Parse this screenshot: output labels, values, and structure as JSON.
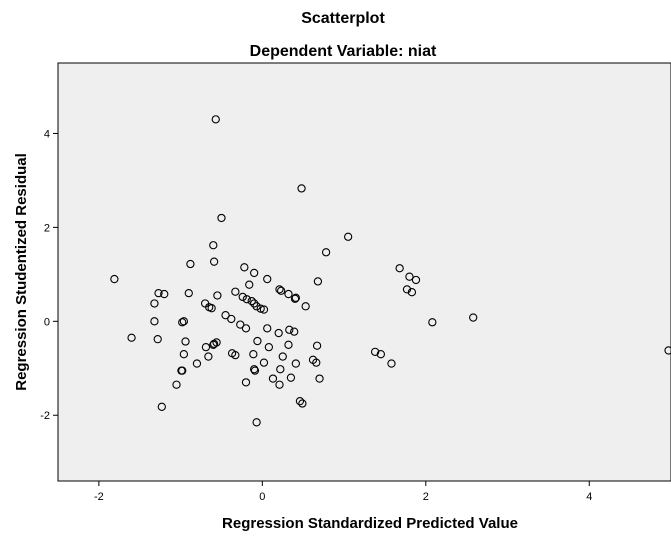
{
  "chart_data": {
    "type": "scatter",
    "title": "Scatterplot",
    "subtitle": "Dependent Variable: niat",
    "xlabel": "Regression Standardized Predicted Value",
    "ylabel": "Regression Studentized Residual",
    "xlim": [
      -2.5,
      5.0
    ],
    "ylim": [
      -3.4,
      5.5
    ],
    "xticks": [
      -2,
      0,
      2,
      4
    ],
    "yticks": [
      -2,
      0,
      2,
      4
    ],
    "xtick_labels": [
      "-2",
      "0",
      "2",
      "4"
    ],
    "ytick_labels": [
      "-2",
      "0",
      "2",
      "4"
    ],
    "grid": false,
    "legend": "none",
    "colors": {
      "plot_background": "#efefef",
      "marker_edge": "#000000"
    },
    "points": [
      [
        -0.57,
        4.3
      ],
      [
        0.48,
        2.83
      ],
      [
        -0.5,
        2.2
      ],
      [
        1.05,
        1.8
      ],
      [
        -0.6,
        1.62
      ],
      [
        0.78,
        1.47
      ],
      [
        -0.59,
        1.27
      ],
      [
        -0.88,
        1.22
      ],
      [
        -0.22,
        1.15
      ],
      [
        -0.1,
        1.03
      ],
      [
        1.68,
        1.13
      ],
      [
        1.8,
        0.95
      ],
      [
        1.88,
        0.88
      ],
      [
        0.06,
        0.9
      ],
      [
        0.68,
        0.85
      ],
      [
        -1.81,
        0.9
      ],
      [
        -0.16,
        0.78
      ],
      [
        0.21,
        0.68
      ],
      [
        0.23,
        0.65
      ],
      [
        0.32,
        0.58
      ],
      [
        0.4,
        0.48
      ],
      [
        0.41,
        0.5
      ],
      [
        1.77,
        0.68
      ],
      [
        1.83,
        0.62
      ],
      [
        -1.27,
        0.6
      ],
      [
        -1.2,
        0.58
      ],
      [
        -0.9,
        0.6
      ],
      [
        -0.55,
        0.55
      ],
      [
        -0.33,
        0.63
      ],
      [
        -0.24,
        0.52
      ],
      [
        -0.19,
        0.47
      ],
      [
        -0.13,
        0.43
      ],
      [
        -0.1,
        0.38
      ],
      [
        -0.07,
        0.32
      ],
      [
        -0.02,
        0.27
      ],
      [
        0.02,
        0.25
      ],
      [
        -0.7,
        0.38
      ],
      [
        -0.65,
        0.3
      ],
      [
        -0.62,
        0.28
      ],
      [
        0.53,
        0.32
      ],
      [
        -1.32,
        0.38
      ],
      [
        -0.45,
        0.13
      ],
      [
        -0.38,
        0.05
      ],
      [
        -0.27,
        -0.07
      ],
      [
        -0.2,
        -0.15
      ],
      [
        0.06,
        -0.15
      ],
      [
        0.33,
        -0.18
      ],
      [
        0.39,
        -0.22
      ],
      [
        0.2,
        -0.25
      ],
      [
        -1.32,
        0.0
      ],
      [
        -0.98,
        -0.02
      ],
      [
        -0.96,
        0.0
      ],
      [
        2.08,
        -0.02
      ],
      [
        2.58,
        0.08
      ],
      [
        -1.6,
        -0.35
      ],
      [
        -1.28,
        -0.38
      ],
      [
        -0.56,
        -0.45
      ],
      [
        -0.6,
        -0.5
      ],
      [
        -0.59,
        -0.48
      ],
      [
        -0.06,
        -0.42
      ],
      [
        0.08,
        -0.55
      ],
      [
        0.32,
        -0.5
      ],
      [
        0.67,
        -0.52
      ],
      [
        -0.94,
        -0.43
      ],
      [
        -0.69,
        -0.55
      ],
      [
        -0.11,
        -0.7
      ],
      [
        -0.37,
        -0.68
      ],
      [
        -0.33,
        -0.72
      ],
      [
        -0.66,
        -0.75
      ],
      [
        -0.96,
        -0.7
      ],
      [
        1.38,
        -0.65
      ],
      [
        1.45,
        -0.7
      ],
      [
        1.58,
        -0.9
      ],
      [
        0.25,
        -0.75
      ],
      [
        0.41,
        -0.9
      ],
      [
        0.62,
        -0.82
      ],
      [
        0.66,
        -0.88
      ],
      [
        -0.8,
        -0.9
      ],
      [
        0.02,
        -0.88
      ],
      [
        -0.98,
        -1.05
      ],
      [
        -0.99,
        -1.05
      ],
      [
        -0.1,
        -1.02
      ],
      [
        -0.09,
        -1.05
      ],
      [
        0.22,
        -1.02
      ],
      [
        0.35,
        -1.2
      ],
      [
        0.13,
        -1.22
      ],
      [
        0.7,
        -1.22
      ],
      [
        -0.2,
        -1.3
      ],
      [
        0.21,
        -1.35
      ],
      [
        -1.05,
        -1.35
      ],
      [
        0.46,
        -1.7
      ],
      [
        0.49,
        -1.75
      ],
      [
        -1.23,
        -1.82
      ],
      [
        -0.07,
        -2.15
      ],
      [
        4.97,
        -0.62
      ]
    ]
  }
}
